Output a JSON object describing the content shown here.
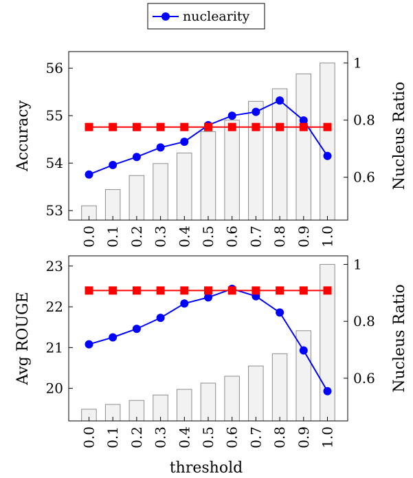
{
  "legend": {
    "entries": [
      "nuclearity"
    ],
    "placement": "top-center"
  },
  "xlabel": "threshold",
  "colors": {
    "nuclearity": "#0000ff",
    "baseline": "#ff0000",
    "bars": "#f2f2f2",
    "bar_edge": "#8c8c8c"
  },
  "chart_data": [
    {
      "type": "bar+line",
      "categories": [
        "0.0",
        "0.1",
        "0.2",
        "0.3",
        "0.4",
        "0.5",
        "0.6",
        "0.7",
        "0.8",
        "0.9",
        "1.0"
      ],
      "ylabel": "Accuracy",
      "y2label": "Nucleus Ratio",
      "ylim": [
        52.8,
        56.35
      ],
      "yticks": [
        53,
        54,
        55,
        56
      ],
      "y2lim": [
        0.45,
        1.04
      ],
      "y2ticks": [
        0.6,
        0.8,
        1
      ],
      "bars": {
        "axis": "right",
        "values": [
          0.5,
          0.557,
          0.606,
          0.648,
          0.685,
          0.76,
          0.8,
          0.866,
          0.91,
          0.962,
          1.0
        ]
      },
      "series": [
        {
          "name": "nuclearity",
          "axis": "left",
          "color": "#0000ff",
          "marker": "circle",
          "values": [
            53.76,
            53.96,
            54.13,
            54.33,
            54.45,
            54.8,
            55.0,
            55.08,
            55.32,
            54.9,
            54.15
          ]
        },
        {
          "axis": "left",
          "color": "#ff0000",
          "marker": "square",
          "values": [
            54.76,
            54.76,
            54.76,
            54.76,
            54.76,
            54.76,
            54.76,
            54.76,
            54.76,
            54.76,
            54.76
          ]
        }
      ]
    },
    {
      "type": "bar+line",
      "categories": [
        "0.0",
        "0.1",
        "0.2",
        "0.3",
        "0.4",
        "0.5",
        "0.6",
        "0.7",
        "0.8",
        "0.9",
        "1.0"
      ],
      "ylabel": "Avg ROUGE",
      "y2label": "Nucleus Ratio",
      "ylim": [
        19.2,
        23.25
      ],
      "yticks": [
        20,
        21,
        22,
        23
      ],
      "y2lim": [
        0.45,
        1.03
      ],
      "y2ticks": [
        0.6,
        0.8,
        1
      ],
      "bars": {
        "axis": "right",
        "values": [
          0.491,
          0.508,
          0.522,
          0.541,
          0.561,
          0.583,
          0.607,
          0.643,
          0.686,
          0.767,
          1.0
        ]
      },
      "series": [
        {
          "name": "nuclearity",
          "axis": "left",
          "color": "#0000ff",
          "marker": "circle",
          "values": [
            21.08,
            21.25,
            21.46,
            21.73,
            22.08,
            22.23,
            22.44,
            22.26,
            21.86,
            20.93,
            19.93
          ]
        },
        {
          "axis": "left",
          "color": "#ff0000",
          "marker": "square",
          "values": [
            22.4,
            22.4,
            22.4,
            22.4,
            22.4,
            22.4,
            22.4,
            22.4,
            22.4,
            22.4,
            22.4
          ]
        }
      ]
    }
  ]
}
